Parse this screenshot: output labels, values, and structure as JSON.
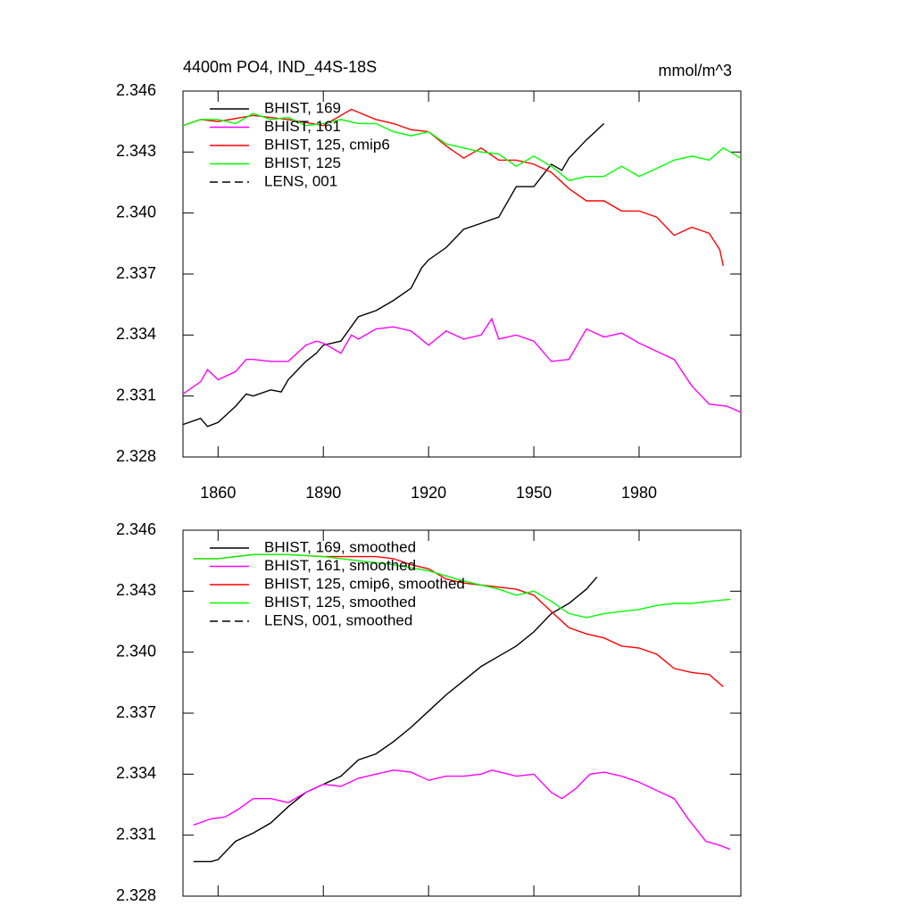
{
  "chart_data": [
    {
      "type": "line",
      "title": "4400m PO4, IND_44S-18S",
      "units": "mmol/m^3",
      "xlim": [
        1850,
        2009
      ],
      "xticks": [
        1860,
        1890,
        1920,
        1950,
        1980
      ],
      "xtick_labels": true,
      "ylim": [
        2.328,
        2.346
      ],
      "yticks": [
        2.328,
        2.331,
        2.334,
        2.337,
        {
          "value": 2.34,
          "label": "2.340"
        },
        2.343,
        2.346
      ],
      "series": [
        {
          "name": "BHIST, 169",
          "color": "#000000",
          "dash": false,
          "x": [
            1850,
            1855,
            1857,
            1860,
            1865,
            1868,
            1870,
            1875,
            1878,
            1880,
            1885,
            1888,
            1890,
            1895,
            1900,
            1905,
            1910,
            1915,
            1918,
            1920,
            1925,
            1930,
            1935,
            1940,
            1943,
            1945,
            1950,
            1955,
            1958,
            1960,
            1965,
            1970
          ],
          "values": [
            2.3296,
            2.3299,
            2.3295,
            2.3297,
            2.3305,
            2.3311,
            2.331,
            2.3313,
            2.3312,
            2.3318,
            2.3327,
            2.3331,
            2.3335,
            2.3337,
            2.3349,
            2.3352,
            2.3357,
            2.3363,
            2.3373,
            2.3377,
            2.3383,
            2.3392,
            2.3395,
            2.3398,
            2.3407,
            2.3413,
            2.3413,
            2.3424,
            2.3421,
            2.3427,
            2.3436,
            2.3444
          ]
        },
        {
          "name": "BHIST, 161",
          "color": "#ff00ff",
          "dash": false,
          "x": [
            1850,
            1855,
            1857,
            1860,
            1865,
            1868,
            1870,
            1875,
            1880,
            1885,
            1888,
            1890,
            1895,
            1898,
            1900,
            1905,
            1910,
            1915,
            1920,
            1925,
            1930,
            1935,
            1938,
            1940,
            1945,
            1950,
            1955,
            1960,
            1965,
            1970,
            1975,
            1980,
            1985,
            1990,
            1995,
            2000,
            2005,
            2009
          ],
          "values": [
            2.3311,
            2.3317,
            2.3323,
            2.3318,
            2.3322,
            2.3328,
            2.3328,
            2.3327,
            2.3327,
            2.3335,
            2.3337,
            2.3336,
            2.3331,
            2.334,
            2.3338,
            2.3343,
            2.3344,
            2.3342,
            2.3335,
            2.3342,
            2.3338,
            2.334,
            2.3348,
            2.3338,
            2.334,
            2.3337,
            2.3327,
            2.3328,
            2.3343,
            2.3339,
            2.3341,
            2.3336,
            2.3332,
            2.3328,
            2.3315,
            2.3306,
            2.3305,
            2.3302
          ]
        },
        {
          "name": "BHIST, 125, cmip6",
          "color": "#ff0000",
          "dash": false,
          "x": [
            1850,
            1855,
            1860,
            1870,
            1880,
            1890,
            1898,
            1905,
            1910,
            1915,
            1920,
            1925,
            1930,
            1935,
            1940,
            1945,
            1950,
            1955,
            1960,
            1965,
            1970,
            1975,
            1980,
            1985,
            1990,
            1995,
            2000,
            2003,
            2004
          ],
          "values": [
            2.3443,
            2.3446,
            2.3445,
            2.3448,
            2.3446,
            2.3443,
            2.3451,
            2.3446,
            2.3444,
            2.3441,
            2.344,
            2.3433,
            2.3427,
            2.3432,
            2.3426,
            2.3426,
            2.3424,
            2.342,
            2.3412,
            2.3406,
            2.3406,
            2.3401,
            2.3401,
            2.3398,
            2.3389,
            2.3393,
            2.339,
            2.3382,
            2.3374
          ]
        },
        {
          "name": "BHIST, 125",
          "color": "#00ff00",
          "dash": false,
          "x": [
            1850,
            1855,
            1860,
            1865,
            1870,
            1875,
            1880,
            1885,
            1890,
            1895,
            1900,
            1905,
            1910,
            1915,
            1920,
            1925,
            1930,
            1935,
            1940,
            1945,
            1950,
            1955,
            1960,
            1965,
            1970,
            1975,
            1980,
            1985,
            1990,
            1995,
            2000,
            2004,
            2009
          ],
          "values": [
            2.3443,
            2.3446,
            2.3446,
            2.3444,
            2.3449,
            2.3446,
            2.3447,
            2.3443,
            2.3444,
            2.3446,
            2.3444,
            2.3444,
            2.344,
            2.3438,
            2.344,
            2.3434,
            2.3432,
            2.343,
            2.3429,
            2.3423,
            2.3428,
            2.3423,
            2.3416,
            2.3418,
            2.3418,
            2.3423,
            2.3418,
            2.3422,
            2.3426,
            2.3428,
            2.3426,
            2.3432,
            2.3427
          ]
        },
        {
          "name": "LENS, 001",
          "color": "#000000",
          "dash": true,
          "x": [],
          "values": []
        }
      ]
    },
    {
      "type": "line",
      "xlim": [
        1850,
        2009
      ],
      "xticks": [
        1860,
        1890,
        1920,
        1950,
        1980
      ],
      "xtick_labels": false,
      "ylim": [
        2.328,
        2.346
      ],
      "yticks": [
        2.328,
        2.331,
        2.334,
        2.337,
        {
          "value": 2.34,
          "label": "2.340"
        },
        2.343,
        2.346
      ],
      "series": [
        {
          "name": "BHIST, 169, smoothed",
          "color": "#000000",
          "dash": false,
          "x": [
            1853,
            1858,
            1860,
            1865,
            1870,
            1875,
            1880,
            1885,
            1890,
            1895,
            1900,
            1905,
            1910,
            1915,
            1920,
            1925,
            1930,
            1935,
            1940,
            1945,
            1950,
            1955,
            1960,
            1965,
            1968
          ],
          "values": [
            2.3297,
            2.3297,
            2.3298,
            2.3307,
            2.3311,
            2.3316,
            2.3324,
            2.3331,
            2.3335,
            2.3339,
            2.3347,
            2.335,
            2.3356,
            2.3363,
            2.3371,
            2.3379,
            2.3386,
            2.3393,
            2.3398,
            2.3403,
            2.341,
            2.3419,
            2.3424,
            2.3431,
            2.3437
          ]
        },
        {
          "name": "BHIST, 161, smoothed",
          "color": "#ff00ff",
          "dash": false,
          "x": [
            1853,
            1858,
            1862,
            1866,
            1870,
            1875,
            1880,
            1885,
            1890,
            1895,
            1900,
            1905,
            1910,
            1915,
            1920,
            1925,
            1930,
            1935,
            1938,
            1945,
            1950,
            1955,
            1958,
            1962,
            1966,
            1970,
            1975,
            1980,
            1985,
            1990,
            1994,
            1999,
            2003,
            2006
          ],
          "values": [
            2.3315,
            2.3318,
            2.3319,
            2.3323,
            2.3328,
            2.3328,
            2.3326,
            2.3331,
            2.3335,
            2.3334,
            2.3338,
            2.334,
            2.3342,
            2.3341,
            2.3337,
            2.3339,
            2.3339,
            2.334,
            2.3342,
            2.3339,
            2.334,
            2.3331,
            2.3328,
            2.3333,
            2.334,
            2.3341,
            2.3339,
            2.3336,
            2.3332,
            2.3328,
            2.3318,
            2.3307,
            2.3305,
            2.3303
          ]
        },
        {
          "name": "BHIST, 125, cmip6, smoothed",
          "color": "#ff0000",
          "dash": false,
          "x": [
            1853,
            1860,
            1870,
            1880,
            1890,
            1900,
            1905,
            1910,
            1915,
            1920,
            1925,
            1930,
            1935,
            1940,
            1945,
            1950,
            1955,
            1960,
            1965,
            1970,
            1975,
            1980,
            1985,
            1990,
            1995,
            2000,
            2004
          ],
          "values": [
            2.3446,
            2.3446,
            2.3448,
            2.3448,
            2.3447,
            2.3447,
            2.3447,
            2.3446,
            2.3443,
            2.3441,
            2.3436,
            2.3434,
            2.3433,
            2.3432,
            2.3431,
            2.3428,
            2.342,
            2.3412,
            2.3409,
            2.3407,
            2.3403,
            2.3402,
            2.3399,
            2.3392,
            2.339,
            2.3389,
            2.3383
          ]
        },
        {
          "name": "BHIST, 125, smoothed",
          "color": "#00ff00",
          "dash": false,
          "x": [
            1853,
            1860,
            1870,
            1880,
            1890,
            1900,
            1910,
            1920,
            1930,
            1940,
            1945,
            1950,
            1955,
            1960,
            1965,
            1970,
            1975,
            1980,
            1985,
            1990,
            1995,
            2000,
            2006
          ],
          "values": [
            2.3446,
            2.3446,
            2.3448,
            2.3448,
            2.3447,
            2.3445,
            2.3443,
            2.344,
            2.3435,
            2.3431,
            2.3428,
            2.343,
            2.3425,
            2.3419,
            2.3417,
            2.3419,
            2.342,
            2.3421,
            2.3423,
            2.3424,
            2.3424,
            2.3425,
            2.3426
          ]
        },
        {
          "name": "LENS, 001, smoothed",
          "color": "#000000",
          "dash": true,
          "x": [],
          "values": []
        }
      ]
    }
  ]
}
